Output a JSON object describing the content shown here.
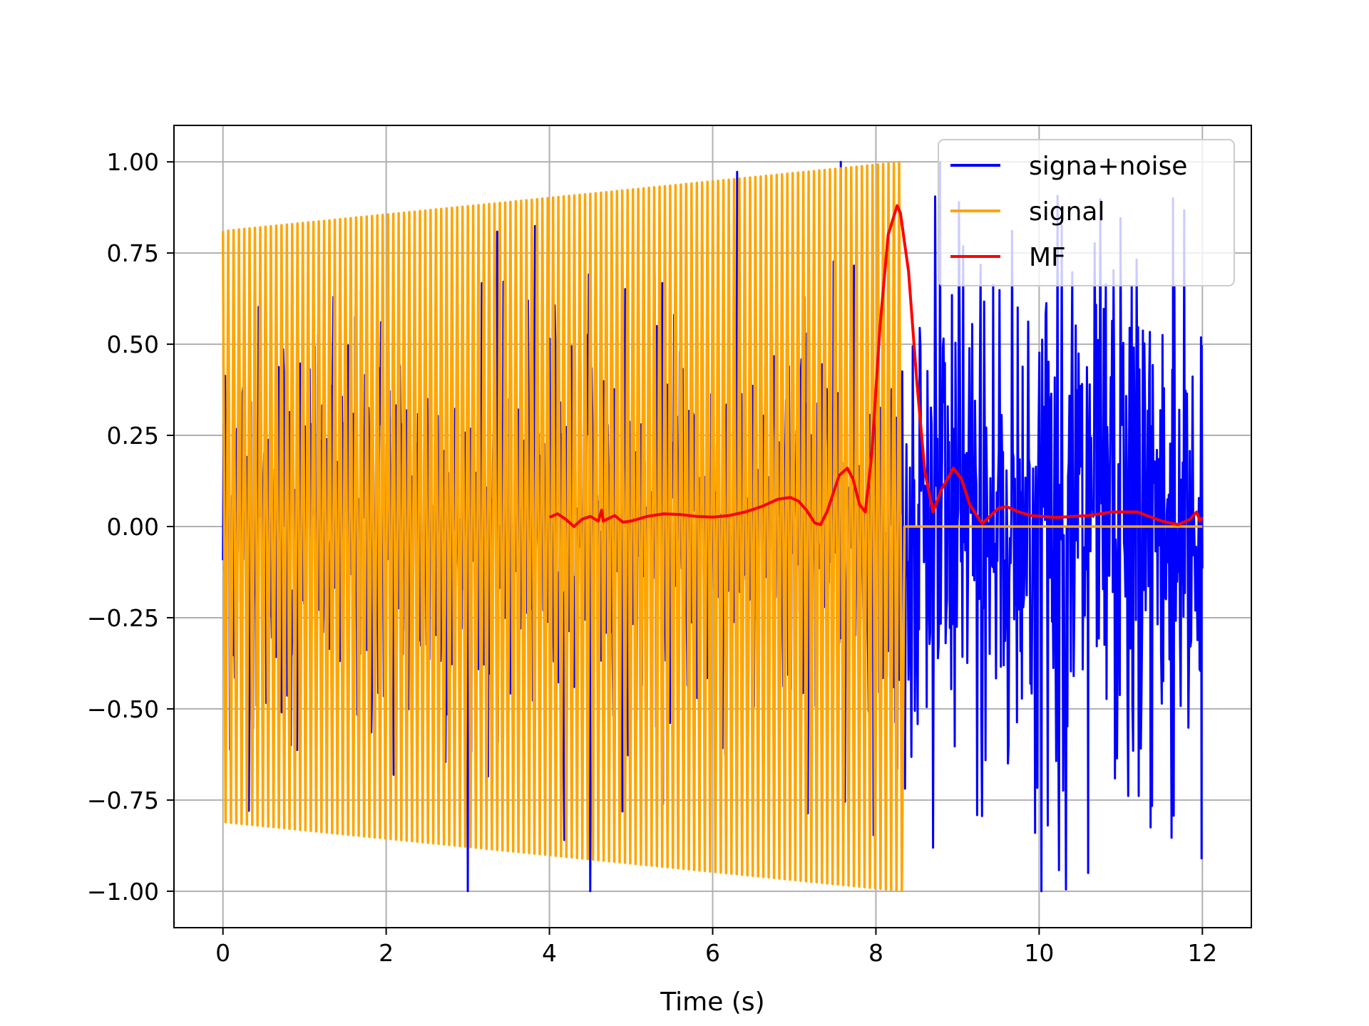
{
  "chart_data": {
    "type": "line",
    "title": "",
    "xlabel": "Time (s)",
    "ylabel": "",
    "xlim": [
      -0.6,
      12.6
    ],
    "ylim": [
      -1.1,
      1.1
    ],
    "x_ticks": [
      0,
      2,
      4,
      6,
      8,
      10,
      12
    ],
    "x_tick_labels": [
      "0",
      "2",
      "4",
      "6",
      "8",
      "10",
      "12"
    ],
    "y_ticks": [
      1.0,
      0.75,
      0.5,
      0.25,
      0.0,
      -0.25,
      -0.5,
      -0.75,
      -1.0
    ],
    "y_tick_labels": [
      "1.00",
      "0.75",
      "0.50",
      "0.25",
      "0.00",
      "−0.25",
      "−0.50",
      "−0.75",
      "−1.00"
    ],
    "grid": true,
    "legend_position": "top-right",
    "series": [
      {
        "name": "signa+noise",
        "color": "#0000ff",
        "description": "signal chirp plus noise from 0 to 12 s",
        "x_range": [
          0,
          12
        ],
        "signal_end": 8.35,
        "noise_amplitude": 0.55,
        "noise_peaks": [
          {
            "x": 7.57,
            "y": 1.0
          },
          {
            "x": 11.64,
            "y": 0.9
          },
          {
            "x": 10.6,
            "y": -0.95
          },
          {
            "x": 9.95,
            "y": -0.84
          },
          {
            "x": 11.99,
            "y": -0.91
          }
        ]
      },
      {
        "name": "signal",
        "color": "#ffa500",
        "description": "chirp with amplitude growing 0.81 to 1.0, frequency rising, ending at 8.35 s then 0",
        "x_range": [
          0,
          12
        ],
        "chirp_start": 0,
        "chirp_end": 8.35,
        "amp_start": 0.81,
        "amp_end": 1.0,
        "cycles": 128
      },
      {
        "name": "MF",
        "color": "#ff0000",
        "description": "matched filter output",
        "points": [
          [
            4.0,
            0.025
          ],
          [
            4.1,
            0.035
          ],
          [
            4.2,
            0.02
          ],
          [
            4.3,
            0.0
          ],
          [
            4.4,
            0.02
          ],
          [
            4.5,
            0.028
          ],
          [
            4.6,
            0.015
          ],
          [
            4.64,
            0.045
          ],
          [
            4.66,
            0.015
          ],
          [
            4.8,
            0.03
          ],
          [
            4.9,
            0.012
          ],
          [
            5.0,
            0.015
          ],
          [
            5.2,
            0.028
          ],
          [
            5.4,
            0.035
          ],
          [
            5.6,
            0.033
          ],
          [
            5.8,
            0.028
          ],
          [
            6.0,
            0.026
          ],
          [
            6.2,
            0.03
          ],
          [
            6.4,
            0.04
          ],
          [
            6.6,
            0.055
          ],
          [
            6.8,
            0.075
          ],
          [
            6.95,
            0.08
          ],
          [
            7.05,
            0.07
          ],
          [
            7.15,
            0.045
          ],
          [
            7.25,
            0.01
          ],
          [
            7.32,
            0.005
          ],
          [
            7.4,
            0.04
          ],
          [
            7.55,
            0.14
          ],
          [
            7.65,
            0.16
          ],
          [
            7.72,
            0.13
          ],
          [
            7.8,
            0.06
          ],
          [
            7.87,
            0.04
          ],
          [
            7.95,
            0.2
          ],
          [
            8.05,
            0.55
          ],
          [
            8.15,
            0.8
          ],
          [
            8.26,
            0.88
          ],
          [
            8.3,
            0.86
          ],
          [
            8.4,
            0.7
          ],
          [
            8.5,
            0.4
          ],
          [
            8.6,
            0.15
          ],
          [
            8.7,
            0.04
          ],
          [
            8.8,
            0.1
          ],
          [
            8.95,
            0.16
          ],
          [
            9.05,
            0.13
          ],
          [
            9.15,
            0.06
          ],
          [
            9.3,
            0.008
          ],
          [
            9.5,
            0.05
          ],
          [
            9.6,
            0.055
          ],
          [
            9.75,
            0.04
          ],
          [
            9.9,
            0.03
          ],
          [
            10.2,
            0.025
          ],
          [
            10.6,
            0.03
          ],
          [
            10.9,
            0.04
          ],
          [
            11.2,
            0.04
          ],
          [
            11.5,
            0.015
          ],
          [
            11.7,
            0.005
          ],
          [
            11.85,
            0.02
          ],
          [
            11.93,
            0.04
          ],
          [
            11.97,
            0.015
          ],
          [
            12.0,
            0.025
          ]
        ]
      }
    ]
  }
}
